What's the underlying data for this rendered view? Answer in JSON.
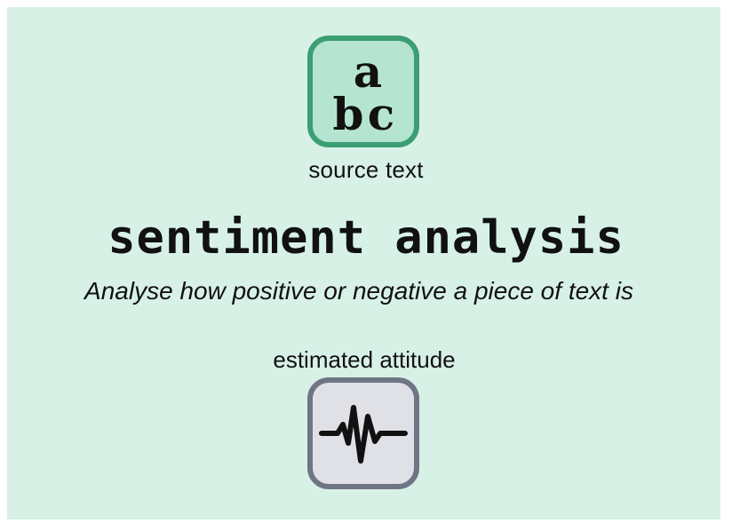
{
  "diagram": {
    "input": {
      "icon": "abc-text-icon",
      "icon_letters": "abc",
      "label": "source text"
    },
    "title": "sentiment analysis",
    "subtitle": "Analyse how positive or negative a piece of text is",
    "output": {
      "icon": "waveform-icon",
      "label": "estimated attitude"
    }
  },
  "colors": {
    "panel_background": "#d8f1e6",
    "input_icon_border": "#3c9e73",
    "input_icon_fill": "#b5e5d0",
    "output_icon_border": "#6f7585",
    "output_icon_fill": "#dfe1e7",
    "text": "#111111"
  }
}
